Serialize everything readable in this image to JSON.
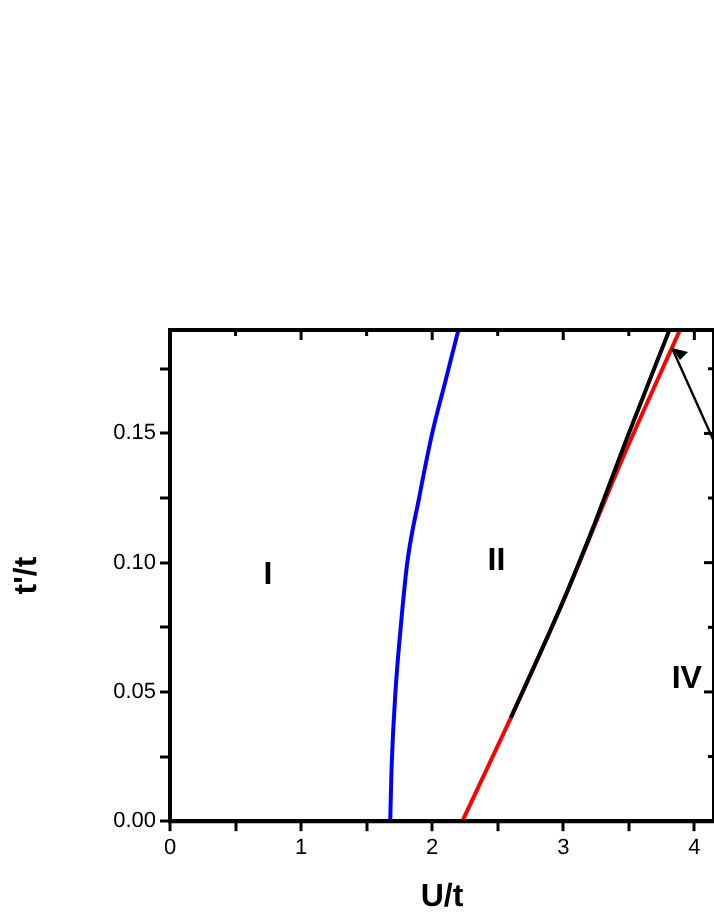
{
  "chart_data": {
    "type": "line",
    "xlabel": "U/t",
    "ylabel": "t'/t",
    "xlim": [
      0,
      4.15
    ],
    "ylim": [
      0,
      0.19
    ],
    "xticks": [
      0,
      {
        "value": 0.5,
        "label": null
      },
      1,
      {
        "value": 1.5,
        "label": null
      },
      2,
      {
        "value": 2.5,
        "label": null
      },
      3,
      {
        "value": 3.5,
        "label": null
      },
      4
    ],
    "yticks": [
      {
        "value": 0,
        "label": "0.00"
      },
      {
        "value": 0.025,
        "label": null
      },
      {
        "value": 0.05,
        "label": "0.05"
      },
      {
        "value": 0.075,
        "label": null
      },
      {
        "value": 0.1,
        "label": "0.10"
      },
      {
        "value": 0.125,
        "label": null
      },
      {
        "value": 0.15,
        "label": "0.15"
      },
      {
        "value": 0.175,
        "label": null
      }
    ],
    "grid": false,
    "legend": false,
    "marker": "none",
    "line_style": "solid",
    "series": [
      {
        "color": "#0000ff",
        "x": [
          1.68,
          1.69,
          1.72,
          1.76,
          1.81,
          1.9,
          2.0,
          2.1,
          2.2
        ],
        "values": [
          0,
          0.02,
          0.05,
          0.075,
          0.1,
          0.125,
          0.15,
          0.17,
          0.19
        ]
      },
      {
        "color": "#000000",
        "x": [
          2.6,
          2.99,
          3.2,
          3.5,
          3.81
        ],
        "values": [
          0.04,
          0.084,
          0.11,
          0.15,
          0.19
        ]
      },
      {
        "color": "#ff0000",
        "x": [
          2.23,
          2.6,
          2.99,
          3.45,
          3.89
        ],
        "values": [
          0,
          0.04,
          0.084,
          0.14,
          0.19
        ]
      }
    ],
    "annotations": [
      "I",
      "II",
      "IV"
    ]
  }
}
